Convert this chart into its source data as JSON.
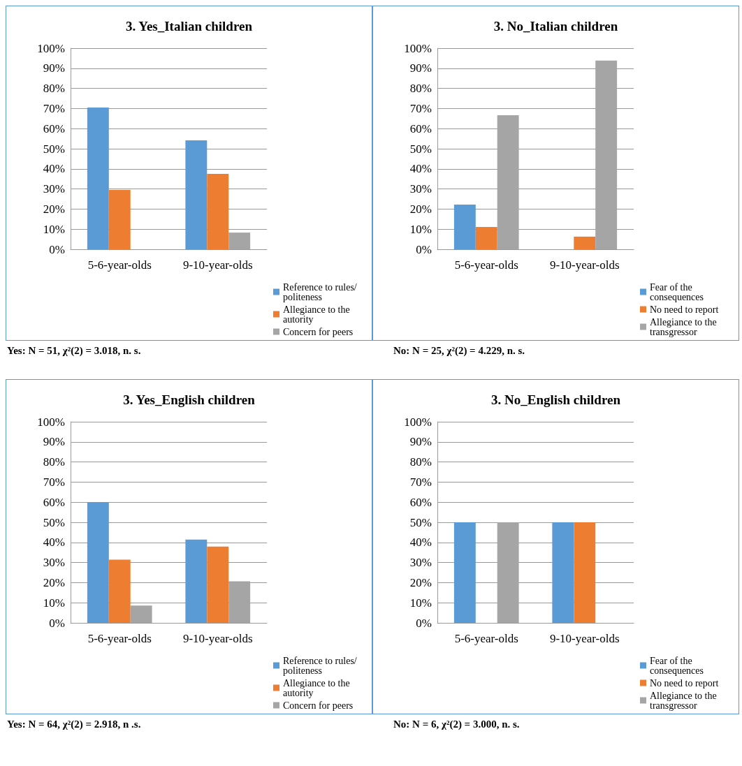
{
  "chart_data": [
    {
      "type": "bar",
      "title": "3. Yes_Italian children",
      "categories": [
        "5-6-year-olds",
        "9-10-year-olds"
      ],
      "series": [
        {
          "name": "Reference to rules/politeness",
          "color": "#5b9bd5",
          "values": [
            70.5,
            54.2
          ]
        },
        {
          "name": "Allegiance to the autority",
          "color": "#ed7d31",
          "values": [
            29.5,
            37.5
          ]
        },
        {
          "name": "Concern for peers",
          "color": "#a5a5a5",
          "values": [
            0,
            8.3
          ]
        }
      ],
      "ylim": [
        0,
        100
      ],
      "yticks": [
        {
          "value": 0,
          "label": "0%"
        },
        {
          "value": 10,
          "label": "10%"
        },
        {
          "value": 20,
          "label": "20%"
        },
        {
          "value": 30,
          "label": "30%"
        },
        {
          "value": 40,
          "label": "40%"
        },
        {
          "value": 50,
          "label": "50%"
        },
        {
          "value": 60,
          "label": "60%"
        },
        {
          "value": 70,
          "label": "70%"
        },
        {
          "value": 80,
          "label": "80%"
        },
        {
          "value": 90,
          "label": "90%"
        },
        {
          "value": 100,
          "label": "100%"
        }
      ],
      "grid": "y",
      "legend": "bottom right",
      "annotations": [
        "Yes: N = 51, χ²(2) = 3.018, n. s."
      ]
    },
    {
      "type": "bar",
      "title": "3. No_Italian children",
      "categories": [
        "5-6-year-olds",
        "9-10-year-olds"
      ],
      "series": [
        {
          "name": "Fear of the consequences",
          "color": "#5b9bd5",
          "values": [
            22.2,
            0
          ]
        },
        {
          "name": "No need to report",
          "color": "#ed7d31",
          "values": [
            11.1,
            6.3
          ]
        },
        {
          "name": "Allegiance to the transgressor",
          "color": "#a5a5a5",
          "values": [
            66.7,
            93.8
          ]
        }
      ],
      "ylim": [
        0,
        100
      ],
      "yticks": [
        {
          "value": 0,
          "label": "0%"
        },
        {
          "value": 10,
          "label": "10%"
        },
        {
          "value": 20,
          "label": "20%"
        },
        {
          "value": 30,
          "label": "30%"
        },
        {
          "value": 40,
          "label": "40%"
        },
        {
          "value": 50,
          "label": "50%"
        },
        {
          "value": 60,
          "label": "60%"
        },
        {
          "value": 70,
          "label": "70%"
        },
        {
          "value": 80,
          "label": "80%"
        },
        {
          "value": 90,
          "label": "90%"
        },
        {
          "value": 100,
          "label": "100%"
        }
      ],
      "grid": "y",
      "legend": "bottom right",
      "annotations": [
        "No: N = 25,  χ²(2) = 4.229, n. s."
      ]
    },
    {
      "type": "bar",
      "title": "3. Yes_English children",
      "categories": [
        "5-6-year-olds",
        "9-10-year-olds"
      ],
      "series": [
        {
          "name": "Reference to rules/politeness",
          "color": "#5b9bd5",
          "values": [
            60,
            41.4
          ]
        },
        {
          "name": "Allegiance to the autority",
          "color": "#ed7d31",
          "values": [
            31.4,
            37.9
          ]
        },
        {
          "name": "Concern for peers",
          "color": "#a5a5a5",
          "values": [
            8.6,
            20.7
          ]
        }
      ],
      "ylim": [
        0,
        100
      ],
      "yticks": [
        {
          "value": 0,
          "label": "0%"
        },
        {
          "value": 10,
          "label": "10%"
        },
        {
          "value": 20,
          "label": "20%"
        },
        {
          "value": 30,
          "label": "30%"
        },
        {
          "value": 40,
          "label": "40%"
        },
        {
          "value": 50,
          "label": "50%"
        },
        {
          "value": 60,
          "label": "60%"
        },
        {
          "value": 70,
          "label": "70%"
        },
        {
          "value": 80,
          "label": "80%"
        },
        {
          "value": 90,
          "label": "90%"
        },
        {
          "value": 100,
          "label": "100%"
        }
      ],
      "grid": "y",
      "legend": "bottom right",
      "annotations": [
        "Yes: N = 64, χ²(2) = 2.918, n .s."
      ]
    },
    {
      "type": "bar",
      "title": "3. No_English children",
      "categories": [
        "5-6-year-olds",
        "9-10-year-olds"
      ],
      "series": [
        {
          "name": "Fear of the consequences",
          "color": "#5b9bd5",
          "values": [
            50,
            50
          ]
        },
        {
          "name": "No need to report",
          "color": "#ed7d31",
          "values": [
            0,
            50
          ]
        },
        {
          "name": "Allegiance to the transgressor",
          "color": "#a5a5a5",
          "values": [
            50,
            0
          ]
        }
      ],
      "ylim": [
        0,
        100
      ],
      "yticks": [
        {
          "value": 0,
          "label": "0%"
        },
        {
          "value": 10,
          "label": "10%"
        },
        {
          "value": 20,
          "label": "20%"
        },
        {
          "value": 30,
          "label": "30%"
        },
        {
          "value": 40,
          "label": "40%"
        },
        {
          "value": 50,
          "label": "50%"
        },
        {
          "value": 60,
          "label": "60%"
        },
        {
          "value": 70,
          "label": "70%"
        },
        {
          "value": 80,
          "label": "80%"
        },
        {
          "value": 90,
          "label": "90%"
        },
        {
          "value": 100,
          "label": "100%"
        }
      ],
      "grid": "y",
      "legend": "bottom right",
      "annotations": [
        "No: N = 6, χ²(2) = 3.000, n. s."
      ]
    }
  ]
}
